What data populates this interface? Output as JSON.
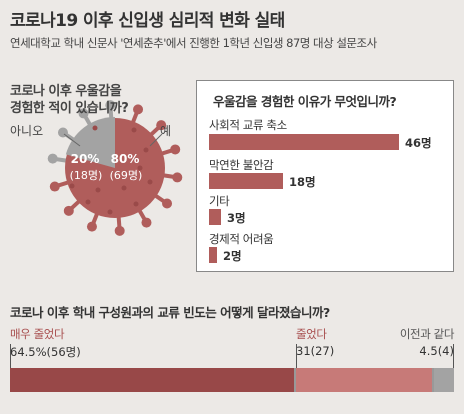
{
  "title": "코로나19 이후 신입생 심리적 변화 실태",
  "subtitle": "연세대학교 학내 신문사 '연세춘추'에서 진행한 1학년 신입생 87명 대상 설문조사",
  "colors": {
    "accent": "#a84f4f",
    "mid": "#c77a78",
    "light": "#e3c2c0",
    "grey": "#a3a3a3",
    "text": "#333333"
  },
  "chart_data": [
    {
      "type": "pie",
      "title_lines": [
        "코로나 이후 우울감을",
        "경험한 적이 있습니까?"
      ],
      "slices": [
        {
          "label": "예",
          "percent": "80%",
          "count": "(69명)",
          "value": 69
        },
        {
          "label": "아니오",
          "percent": "20%",
          "count": "(18명)",
          "value": 18
        }
      ]
    },
    {
      "type": "bar",
      "title": "우울감을 경험한 이유가 무엇입니까?",
      "categories": [
        "사회적 교류 축소",
        "막연한 불안감",
        "기타",
        "경제적 어려움"
      ],
      "values": [
        46,
        18,
        3,
        2
      ],
      "value_labels": [
        "46명",
        "18명",
        "3명",
        "2명"
      ]
    },
    {
      "type": "bar",
      "title": "코로나 이후 학내 구성원과의 교류 빈도는 어떻게 달라졌습니까?",
      "segments": [
        {
          "label": "매우 줄었다",
          "value_label": "64.5%(56명)",
          "percent": 64.5
        },
        {
          "label": "줄었다",
          "value_label": "31(27)",
          "percent": 31
        },
        {
          "label": "이전과 같다",
          "value_label": "4.5(4)",
          "percent": 4.5
        }
      ]
    }
  ]
}
